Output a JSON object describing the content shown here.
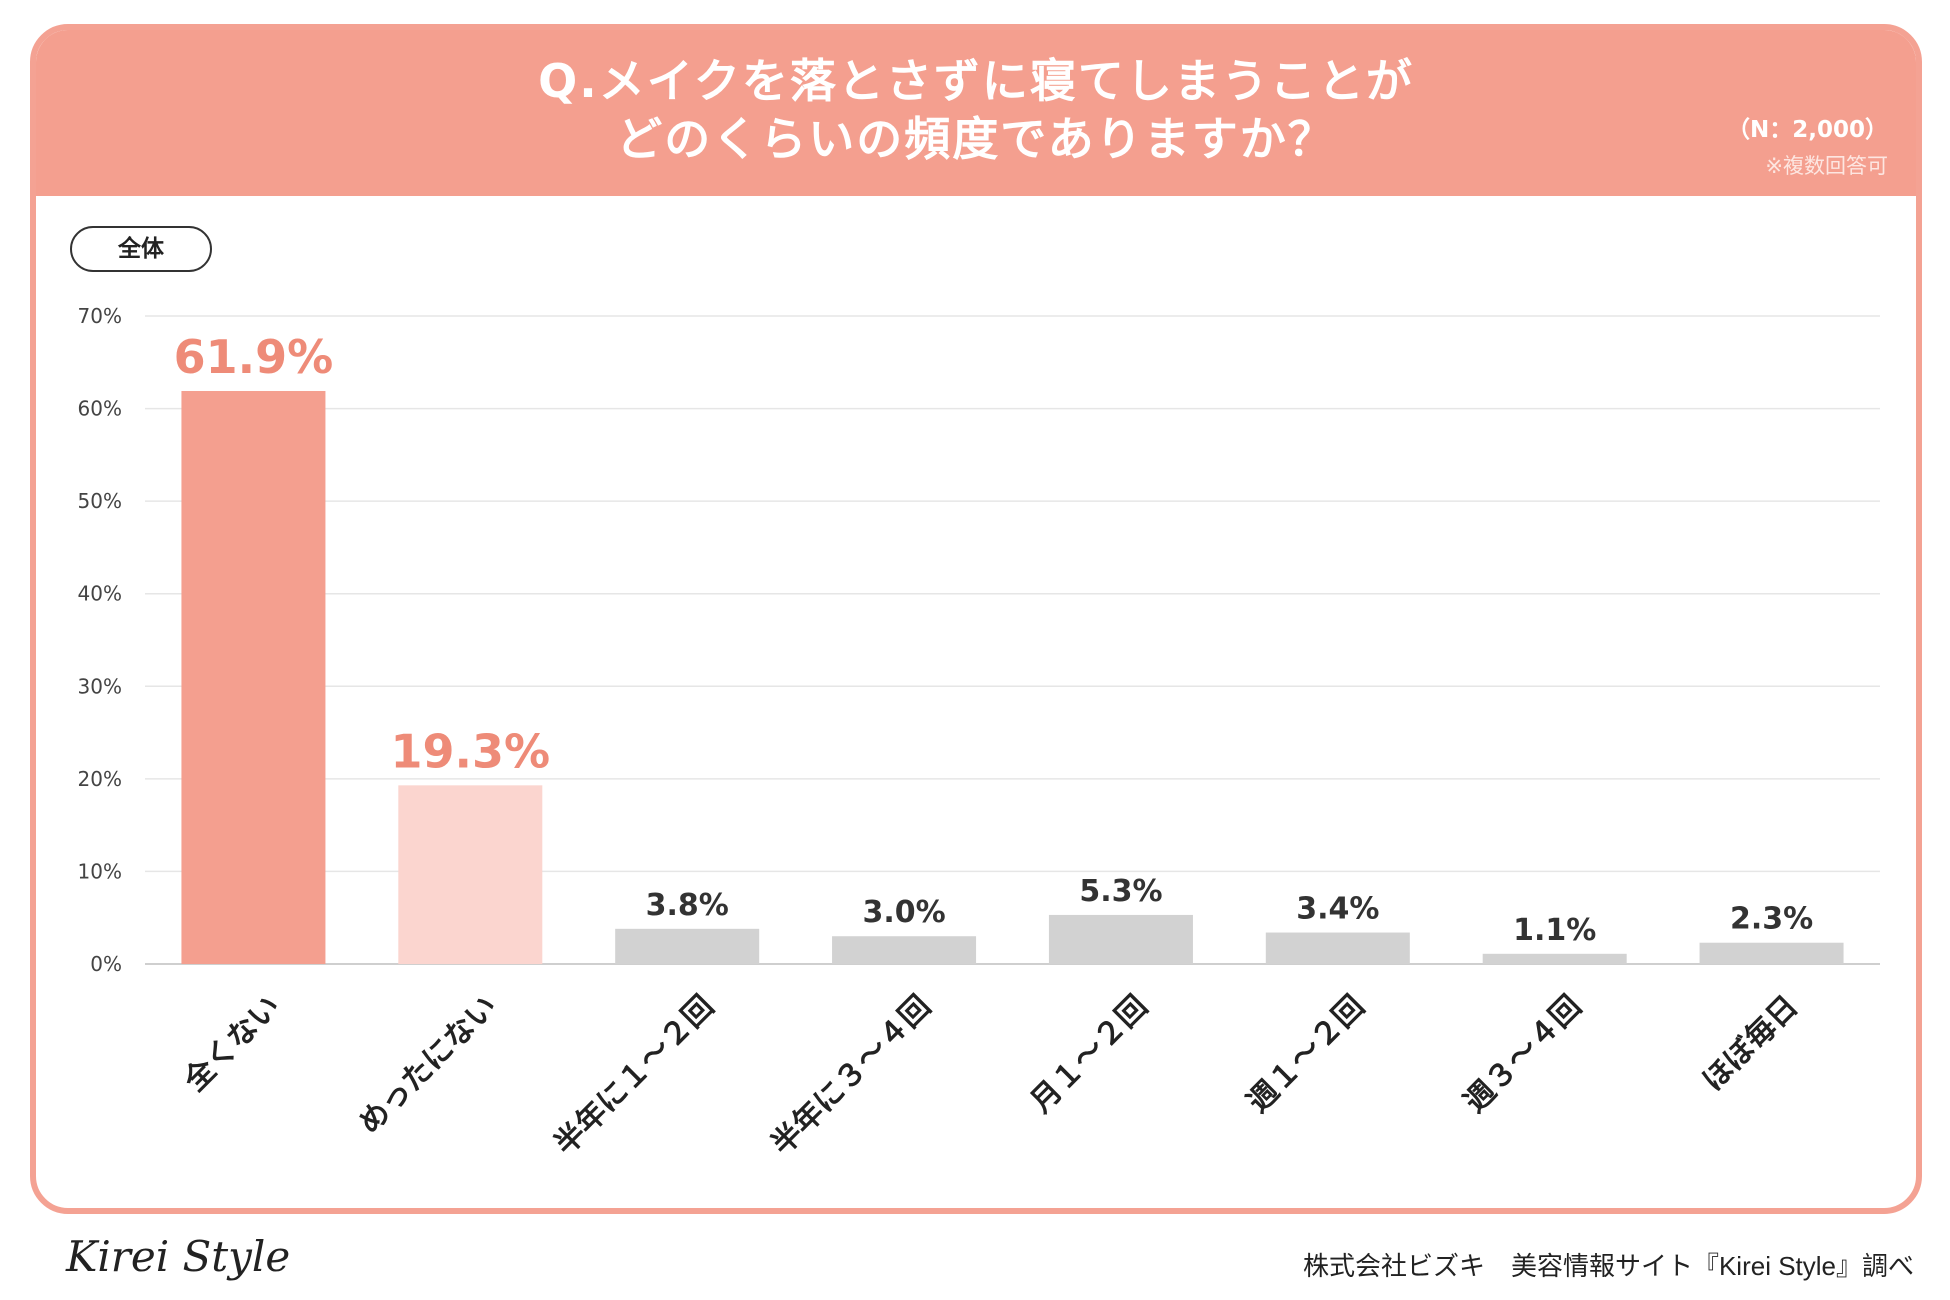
{
  "header": {
    "title_line1": "Q.メイクを落とさずに寝てしまうことが",
    "title_line2": "どのくらいの頻度でありますか？",
    "sample": "（N：2,000）",
    "note": "※複数回答可"
  },
  "segment_label": "全体",
  "footer": {
    "logo": "Kirei Style",
    "credit": "株式会社ビズキ　美容情報サイト『Kirei Style』調べ"
  },
  "colors": {
    "header": "#f49f8f",
    "highlight_bar": "#f49f8f",
    "secondary_bar": "#fbd5cf",
    "neutral_bar": "#d2d2d2",
    "highlight_label": "#ee8b78",
    "neutral_label": "#333333"
  },
  "chart_data": {
    "type": "bar",
    "categories": [
      "全くない",
      "めったにない",
      "半年に１～２回",
      "半年に３～４回",
      "月１～２回",
      "週１～２回",
      "週３～４回",
      "ほぼ毎日"
    ],
    "values": [
      61.9,
      19.3,
      3.8,
      3.0,
      5.3,
      3.4,
      1.1,
      2.3
    ],
    "value_labels": [
      "61.9%",
      "19.3%",
      "3.8%",
      "3.0%",
      "5.3%",
      "3.4%",
      "1.1%",
      "2.3%"
    ],
    "bar_styles": [
      "highlight",
      "secondary",
      "neutral",
      "neutral",
      "neutral",
      "neutral",
      "neutral",
      "neutral"
    ],
    "y_ticks": [
      "0%",
      "10%",
      "20%",
      "30%",
      "40%",
      "50%",
      "60%",
      "70%"
    ],
    "ylim": [
      0,
      70
    ],
    "grid": true,
    "legend": "none"
  }
}
